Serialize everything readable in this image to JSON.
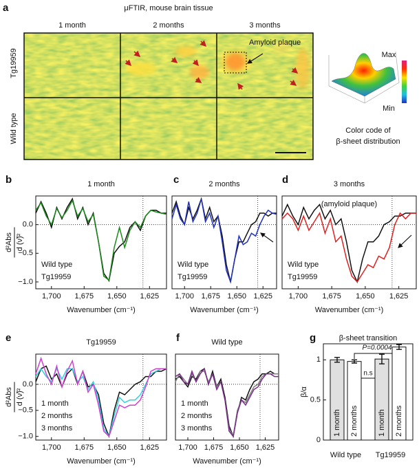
{
  "figure_a": {
    "panel": "a",
    "title": "μFTIR, mouse brain tissue",
    "columns": [
      "1 month",
      "2 months",
      "3 months"
    ],
    "rows": [
      "Tg19959",
      "Wild type"
    ],
    "annotation": "Amyloid plaque",
    "colorbar_max": "Max",
    "colorbar_min": "Min",
    "caption_line1": "Color code of",
    "caption_line2": "β-sheet distribution"
  },
  "chart_data": [
    {
      "type": "line",
      "panel": "b",
      "title": "1 month",
      "xlabel": "Wavenumber (cm⁻¹)",
      "ylabel_top": "d²Abs",
      "ylabel_bottom": "d (ν̃)²",
      "x": [
        1712,
        1708,
        1704,
        1700,
        1696,
        1692,
        1688,
        1684,
        1680,
        1676,
        1672,
        1668,
        1664,
        1660,
        1656,
        1652,
        1648,
        1644,
        1640,
        1636,
        1632,
        1628,
        1624,
        1620,
        1616,
        1612
      ],
      "xlim": [
        1712,
        1612
      ],
      "xticks": [
        {
          "value": 1700,
          "label": "1,700"
        },
        {
          "value": 1675,
          "label": "1,675"
        },
        {
          "value": 1650,
          "label": "1,650"
        },
        {
          "value": 1625,
          "label": "1,625"
        }
      ],
      "ylim": [
        -1.12,
        0.5
      ],
      "yticks": [
        {
          "value": -1,
          "label": "−1.0"
        },
        {
          "value": -0.5,
          "label": "−0.5"
        },
        {
          "value": 0,
          "label": "0.0"
        }
      ],
      "vline": 1630,
      "series": [
        {
          "name": "Wild type",
          "color": "#111111",
          "values": [
            0.2,
            0.4,
            0.2,
            -0.05,
            0.3,
            0.1,
            0.3,
            0.45,
            0.1,
            0.3,
            0.0,
            0.2,
            -0.3,
            -0.85,
            -0.98,
            -0.5,
            -0.38,
            -0.3,
            -0.05,
            0.05,
            -0.1,
            0.15,
            0.25,
            0.25,
            0.2,
            0.2
          ]
        },
        {
          "name": "Tg19959",
          "color": "#1a8a1a",
          "values": [
            0.25,
            0.38,
            0.15,
            0.0,
            0.28,
            0.12,
            0.25,
            0.42,
            0.15,
            0.28,
            0.05,
            0.18,
            -0.3,
            -0.9,
            -0.97,
            -0.4,
            -0.05,
            -0.4,
            -0.1,
            0.05,
            -0.05,
            0.15,
            0.25,
            0.22,
            0.2,
            0.18
          ]
        }
      ]
    },
    {
      "type": "line",
      "panel": "c",
      "title": "2 months",
      "xlabel": "Wavenumber (cm⁻¹)",
      "x": [
        1712,
        1708,
        1704,
        1700,
        1696,
        1692,
        1688,
        1684,
        1680,
        1676,
        1672,
        1668,
        1664,
        1660,
        1656,
        1652,
        1648,
        1644,
        1640,
        1636,
        1632,
        1628,
        1624,
        1620,
        1616,
        1612
      ],
      "xlim": [
        1712,
        1612
      ],
      "xticks": [
        {
          "value": 1700,
          "label": "1,700"
        },
        {
          "value": 1675,
          "label": "1,675"
        },
        {
          "value": 1650,
          "label": "1,650"
        },
        {
          "value": 1625,
          "label": "1,625"
        }
      ],
      "ylim": [
        -1.12,
        0.5
      ],
      "vline": 1630,
      "series": [
        {
          "name": "Wild type",
          "color": "#111111",
          "values": [
            0.2,
            0.4,
            0.15,
            0.0,
            0.3,
            0.1,
            0.25,
            0.45,
            0.1,
            0.3,
            0.05,
            0.15,
            -0.2,
            -0.7,
            -1.0,
            -0.6,
            -0.3,
            -0.3,
            -0.15,
            0.0,
            0.05,
            0.2,
            0.2,
            0.15,
            0.2,
            0.2
          ]
        },
        {
          "name": "Tg19959",
          "color": "#2030c0",
          "values": [
            0.1,
            0.35,
            0.1,
            0.0,
            0.4,
            0.05,
            0.2,
            0.45,
            0.05,
            0.2,
            -0.05,
            0.15,
            -0.3,
            -0.8,
            -1.0,
            -0.6,
            -0.2,
            -0.35,
            -0.3,
            -0.15,
            -0.2,
            0.0,
            0.15,
            0.25,
            0.2,
            0.18
          ]
        }
      ]
    },
    {
      "type": "line",
      "panel": "d",
      "title": "(amyloid plaque)",
      "xlabel": "Wavenumber (cm⁻¹)",
      "heading": "3 months",
      "x": [
        1712,
        1708,
        1704,
        1700,
        1696,
        1692,
        1688,
        1684,
        1680,
        1676,
        1672,
        1668,
        1664,
        1660,
        1656,
        1652,
        1648,
        1644,
        1640,
        1636,
        1632,
        1628,
        1624,
        1620,
        1616,
        1612
      ],
      "xlim": [
        1712,
        1612
      ],
      "xticks": [
        {
          "value": 1700,
          "label": "1,700"
        },
        {
          "value": 1675,
          "label": "1,675"
        },
        {
          "value": 1650,
          "label": "1,650"
        },
        {
          "value": 1625,
          "label": "1,625"
        }
      ],
      "ylim": [
        -1.12,
        0.5
      ],
      "vline": 1630,
      "series": [
        {
          "name": "Wild type",
          "color": "#111111",
          "values": [
            0.15,
            0.35,
            0.15,
            0.0,
            0.3,
            0.1,
            0.25,
            0.35,
            0.1,
            0.25,
            0.0,
            0.1,
            -0.3,
            -0.8,
            -1.0,
            -0.6,
            -0.3,
            -0.3,
            -0.2,
            0.0,
            0.05,
            0.15,
            0.15,
            0.2,
            0.2,
            0.2
          ]
        },
        {
          "name": "Tg19959",
          "color": "#e02020",
          "values": [
            0.1,
            0.2,
            0.1,
            -0.1,
            0.15,
            -0.1,
            0.05,
            0.2,
            -0.15,
            0.1,
            -0.3,
            -0.2,
            -0.6,
            -0.9,
            -1.0,
            -0.85,
            -0.7,
            -0.75,
            -0.55,
            -0.6,
            -0.4,
            0.0,
            0.2,
            0.1,
            0.2,
            0.2
          ]
        }
      ]
    },
    {
      "type": "line",
      "panel": "e",
      "title": "Tg19959",
      "xlabel": "Wavenumber (cm⁻¹)",
      "ylabel_top": "d²Abs",
      "ylabel_bottom": "d (ν̃)²",
      "x": [
        1712,
        1708,
        1704,
        1700,
        1696,
        1692,
        1688,
        1684,
        1680,
        1676,
        1672,
        1668,
        1664,
        1660,
        1656,
        1652,
        1648,
        1644,
        1640,
        1636,
        1632,
        1628,
        1624,
        1620,
        1616,
        1612
      ],
      "xlim": [
        1712,
        1612
      ],
      "xticks": [
        {
          "value": 1700,
          "label": "1,700"
        },
        {
          "value": 1675,
          "label": "1,675"
        },
        {
          "value": 1650,
          "label": "1,650"
        },
        {
          "value": 1625,
          "label": "1,625"
        }
      ],
      "ylim": [
        -1.07,
        0.58
      ],
      "yticks": [
        {
          "value": -1,
          "label": "−1.0"
        },
        {
          "value": -0.5,
          "label": "−0.5"
        },
        {
          "value": 0,
          "label": "0.0"
        }
      ],
      "vline": 1630,
      "series": [
        {
          "name": "1 month",
          "color": "#111111",
          "values": [
            0.05,
            0.3,
            0.35,
            0.1,
            0.2,
            -0.05,
            0.2,
            0.3,
            0.0,
            0.25,
            -0.05,
            0.0,
            -0.2,
            -0.75,
            -1.0,
            -0.5,
            -0.15,
            -0.2,
            -0.1,
            0.0,
            0.05,
            0.15,
            0.15,
            0.25,
            0.25,
            0.3
          ]
        },
        {
          "name": "2 months",
          "color": "#30d0e0",
          "values": [
            0.15,
            0.3,
            0.15,
            0.05,
            0.3,
            0.1,
            0.3,
            0.3,
            0.05,
            0.15,
            -0.1,
            0.05,
            -0.3,
            -0.85,
            -1.0,
            -0.6,
            -0.25,
            -0.35,
            -0.3,
            -0.3,
            -0.2,
            0.0,
            0.2,
            0.25,
            0.3,
            0.3
          ]
        },
        {
          "name": "3 months",
          "color": "#d040d0",
          "values": [
            0.2,
            0.5,
            0.2,
            0.0,
            0.35,
            -0.05,
            0.25,
            0.45,
            0.0,
            0.25,
            -0.15,
            0.0,
            -0.4,
            -0.9,
            -1.0,
            -0.7,
            -0.4,
            -0.45,
            -0.4,
            -0.4,
            -0.3,
            -0.05,
            0.25,
            0.3,
            0.3,
            0.3
          ]
        }
      ]
    },
    {
      "type": "line",
      "panel": "f",
      "title": "Wild type",
      "xlabel": "Wavenumber (cm⁻¹)",
      "x": [
        1712,
        1708,
        1704,
        1700,
        1696,
        1692,
        1688,
        1684,
        1680,
        1676,
        1672,
        1668,
        1664,
        1660,
        1656,
        1652,
        1648,
        1644,
        1640,
        1636,
        1632,
        1628,
        1624,
        1620,
        1616,
        1612
      ],
      "xlim": [
        1712,
        1612
      ],
      "xticks": [
        {
          "value": 1700,
          "label": "1,700"
        },
        {
          "value": 1675,
          "label": "1,675"
        },
        {
          "value": 1650,
          "label": "1,650"
        },
        {
          "value": 1625,
          "label": "1,625"
        }
      ],
      "ylim": [
        -1.07,
        0.58
      ],
      "vline": 1630,
      "series": [
        {
          "name": "1 month",
          "color": "#111111",
          "values": [
            0.1,
            0.15,
            0.05,
            -0.05,
            0.15,
            0.1,
            0.25,
            0.3,
            0.0,
            0.25,
            -0.05,
            0.1,
            -0.25,
            -0.8,
            -1.0,
            -0.55,
            -0.25,
            -0.3,
            -0.1,
            0.05,
            0.1,
            0.2,
            0.2,
            0.25,
            0.2,
            0.2
          ]
        },
        {
          "name": "2 months",
          "color": "#808080",
          "values": [
            0.05,
            0.2,
            0.1,
            0.0,
            0.2,
            0.05,
            0.25,
            0.25,
            0.05,
            0.2,
            -0.05,
            0.05,
            -0.3,
            -0.85,
            -1.0,
            -0.5,
            -0.3,
            -0.35,
            -0.2,
            -0.05,
            0.0,
            0.15,
            0.2,
            0.2,
            0.2,
            0.2
          ]
        },
        {
          "name": "3 months",
          "color": "#7a2a8a",
          "values": [
            0.15,
            0.2,
            0.05,
            0.0,
            0.25,
            0.05,
            0.2,
            0.3,
            0.0,
            0.2,
            -0.1,
            0.05,
            -0.3,
            -0.9,
            -1.0,
            -0.55,
            -0.3,
            -0.4,
            -0.25,
            -0.1,
            -0.05,
            0.1,
            0.2,
            0.2,
            0.15,
            0.15
          ]
        }
      ]
    },
    {
      "type": "bar",
      "panel": "g",
      "title": "β-sheet transition",
      "ylabel": "β/α",
      "categories": [
        "Wild type",
        "Tg19959"
      ],
      "ylim": [
        0,
        1.2
      ],
      "yticks": [
        0,
        0.5,
        1
      ],
      "significance": [
        "n.s",
        "P=0.0004"
      ],
      "series": [
        {
          "name": "1 month",
          "color": "#e0e0e0",
          "values": [
            1.0,
            1.01
          ],
          "errors": [
            0.03,
            0.06
          ]
        },
        {
          "name": "2 months",
          "color": "#ffffff",
          "values": [
            0.98,
            1.16
          ],
          "errors": [
            0.02,
            0.03
          ]
        }
      ]
    }
  ]
}
